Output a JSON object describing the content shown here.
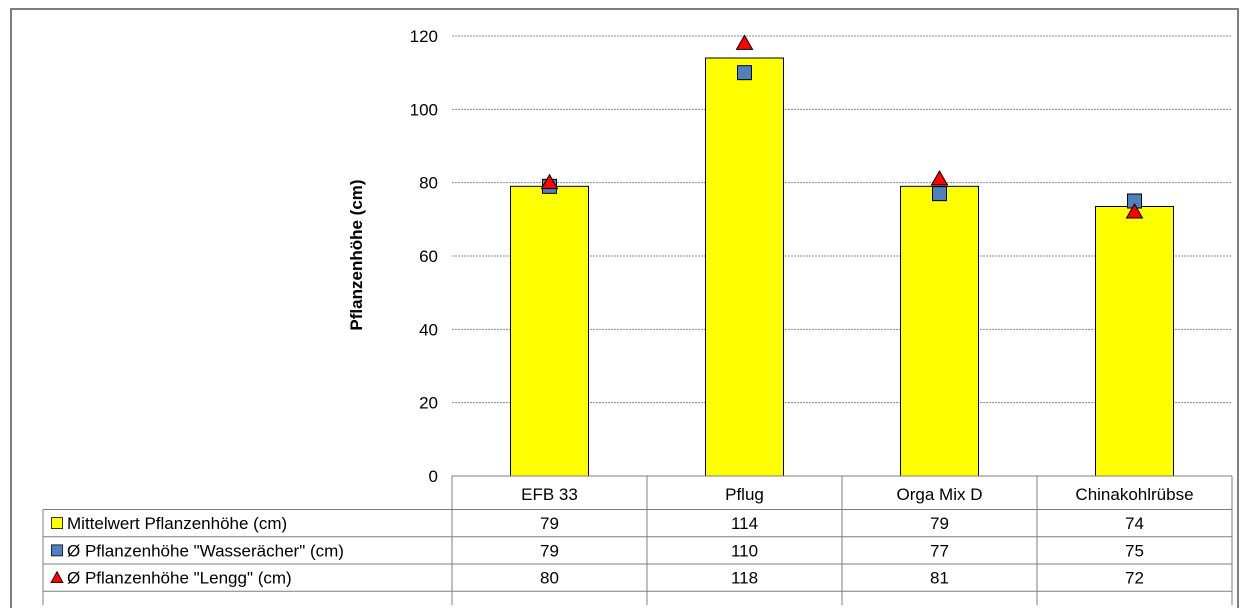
{
  "chart_data": {
    "type": "bar",
    "xlabel": "",
    "ylabel": "Pflanzenhöhe (cm)",
    "ylim": [
      0,
      120
    ],
    "yticks": [
      0,
      20,
      40,
      60,
      80,
      100,
      120
    ],
    "grid": true,
    "categories": [
      "EFB 33",
      "Pflug",
      "Orga Mix D",
      "Chinakohlrübse"
    ],
    "series": [
      {
        "name": "Mittelwert Pflanzenhöhe (cm)",
        "kind": "bar",
        "marker": "square-yellow",
        "color": "#ffff00",
        "values": [
          79,
          114,
          79,
          74
        ],
        "display": [
          "79",
          "114",
          "79",
          "74"
        ],
        "plot_values": [
          79,
          114,
          79,
          73.5
        ]
      },
      {
        "name": "Ø Pflanzenhöhe \"Wasserächer\" (cm)",
        "kind": "marker",
        "marker": "square",
        "color": "#4f81bd",
        "values": [
          79,
          110,
          77,
          75
        ],
        "display": [
          "79",
          "110",
          "77",
          "75"
        ]
      },
      {
        "name": "Ø Pflanzenhöhe \"Lengg\" (cm)",
        "kind": "marker",
        "marker": "triangle",
        "color": "#ff0000",
        "values": [
          80,
          118,
          81,
          72
        ],
        "display": [
          "80",
          "118",
          "81",
          "72"
        ]
      }
    ]
  }
}
